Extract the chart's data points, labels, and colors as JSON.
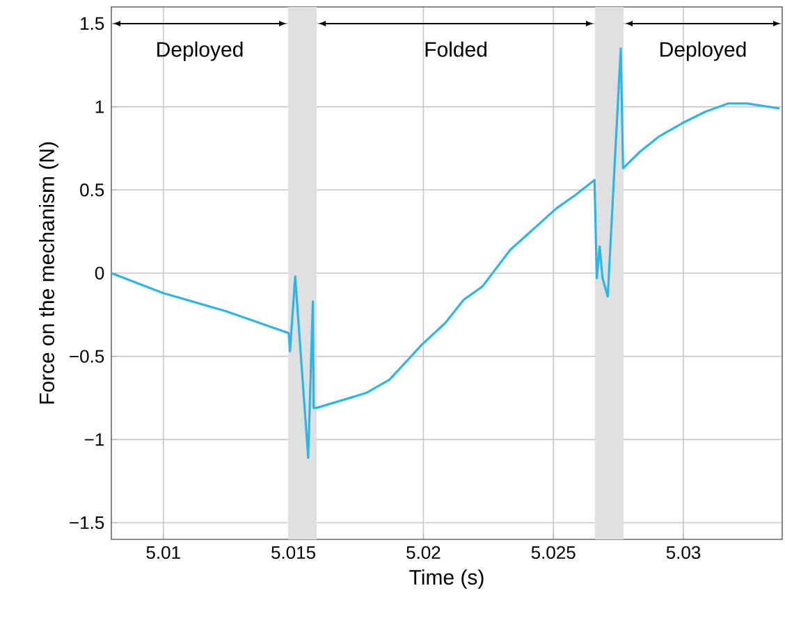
{
  "chart_data": {
    "type": "line",
    "xlabel": "Time (s)",
    "ylabel": "Force on the mechanism (N)",
    "x": [
      5.008,
      5.01,
      5.01243,
      5.01482,
      5.01487,
      5.01507,
      5.01557,
      5.01575,
      5.01578,
      5.01589,
      5.0178,
      5.0187,
      5.01994,
      5.02084,
      5.02155,
      5.02227,
      5.02334,
      5.02512,
      5.02585,
      5.02658,
      5.02667,
      5.02678,
      5.02689,
      5.02709,
      5.02759,
      5.02768,
      5.02833,
      5.02905,
      5.02994,
      5.03084,
      5.03173,
      5.03244,
      5.0337
    ],
    "series": [
      {
        "color": "#29b6e8",
        "values": [
          0.0,
          -0.12,
          -0.23,
          -0.36,
          -0.47,
          -0.02,
          -1.11,
          -0.17,
          -0.81,
          -0.81,
          -0.72,
          -0.64,
          -0.43,
          -0.3,
          -0.16,
          -0.08,
          0.14,
          0.39,
          0.47,
          0.56,
          -0.03,
          0.16,
          -0.03,
          -0.14,
          1.35,
          0.63,
          0.73,
          0.82,
          0.9,
          0.97,
          1.02,
          1.02,
          0.99
        ]
      }
    ],
    "xlim": [
      5.008,
      5.0338
    ],
    "ylim": [
      -1.6,
      1.6
    ],
    "xticks": [
      5.01,
      5.015,
      5.02,
      5.025,
      5.03
    ],
    "yticks": [
      {
        "value": -1.5,
        "label": "−1.5"
      },
      {
        "value": -1,
        "label": "−1"
      },
      {
        "value": -0.5,
        "label": "−0.5"
      },
      0,
      0.5,
      1,
      1.5
    ],
    "bands": [
      {
        "axis": "x",
        "from": 5.0148,
        "to": 5.0159,
        "color": "#e0e0e0"
      },
      {
        "axis": "x",
        "from": 5.0266,
        "to": 5.0277,
        "color": "#e0e0e0"
      }
    ],
    "annotations": [
      "Deployed",
      "Folded",
      "Deployed"
    ],
    "grid": true,
    "marker": "none",
    "line_style": "solid"
  }
}
